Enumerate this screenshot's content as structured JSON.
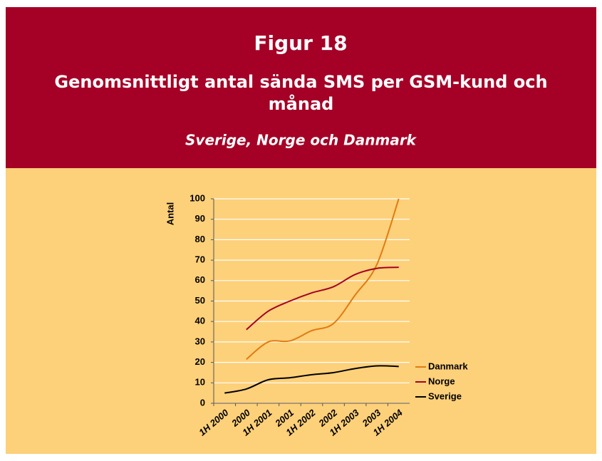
{
  "chart_data": {
    "type": "line",
    "title": "Figur 18",
    "subtitle": "Genomsnittligt antal sända SMS per GSM-kund och månad",
    "subtitle2": "Sverige, Norge och Danmark",
    "ylabel": "Antal",
    "categories": [
      "1H 2000",
      "2000",
      "1H 2001",
      "2001",
      "1H 2002",
      "2002",
      "1H 2003",
      "2003",
      "1H 2004"
    ],
    "series": [
      {
        "name": "Danmark",
        "color": "#e07c12",
        "values": [
          null,
          21.5,
          30,
          30.5,
          35.5,
          39,
          53,
          68,
          100
        ]
      },
      {
        "name": "Norge",
        "color": "#a50026",
        "values": [
          null,
          36,
          45,
          50,
          54,
          57,
          63,
          66,
          66.5
        ]
      },
      {
        "name": "Sverige",
        "color": "#000000",
        "values": [
          5,
          7,
          11.5,
          12.5,
          14,
          15,
          17,
          18.3,
          18
        ]
      }
    ],
    "ylim": [
      0,
      100
    ],
    "yticks": [
      0,
      10,
      20,
      30,
      40,
      50,
      60,
      70,
      80,
      90,
      100
    ],
    "grid": true,
    "legend": "right"
  }
}
